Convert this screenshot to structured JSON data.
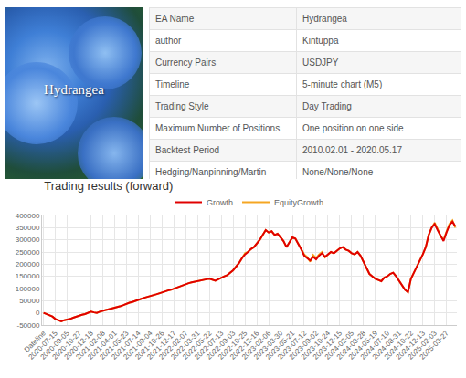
{
  "info": {
    "image_caption": "Hydrangea",
    "rows": [
      [
        "EA Name",
        "Hydrangea"
      ],
      [
        "author",
        "Kintuppa"
      ],
      [
        "Currency Pairs",
        "USDJPY"
      ],
      [
        "Timeline",
        "5-minute chart (M5)"
      ],
      [
        "Trading Style",
        "Day Trading"
      ],
      [
        "Maximum Number of Positions",
        "One position on one side"
      ],
      [
        "Backtest Period",
        "2010.02.01 - 2020.05.17"
      ],
      [
        "Hedging/Nanpinning/Martin",
        "None/None/None"
      ]
    ]
  },
  "chart_data": {
    "type": "line",
    "title": "Trading results (forward)",
    "categories": [
      "Dateline",
      null,
      null,
      null,
      "2020-07-15",
      null,
      null,
      null,
      "2020-09-05",
      null,
      null,
      null,
      "2020-10-27",
      null,
      null,
      null,
      "2020-12-18",
      null,
      null,
      null,
      "2021-02-08",
      null,
      null,
      null,
      "2021-04-01",
      null,
      null,
      null,
      "2021-05-23",
      null,
      null,
      null,
      "2021-07-14",
      null,
      null,
      null,
      "2021-09-04",
      null,
      null,
      null,
      "2021-10-26",
      null,
      null,
      null,
      "2021-12-17",
      null,
      null,
      null,
      "2022-02-07",
      null,
      null,
      null,
      "2022-03-31",
      null,
      null,
      null,
      "2022-05-22",
      null,
      null,
      null,
      "2022-07-13",
      null,
      null,
      null,
      "2022-09-03",
      null,
      null,
      null,
      "2022-10-25",
      null,
      null,
      null,
      "2022-12-16",
      null,
      null,
      null,
      "2023-02-06",
      null,
      null,
      null,
      "2023-03-30",
      null,
      null,
      null,
      "2023-05-21",
      null,
      null,
      null,
      "2023-07-12",
      null,
      null,
      null,
      "2023-09-02",
      null,
      null,
      null,
      "2023-10-24",
      null,
      null,
      null,
      "2023-12-15",
      null,
      null,
      null,
      "2024-02-05",
      null,
      null,
      null,
      "2024-03-28",
      null,
      null,
      null,
      "2024-05-19",
      null,
      null,
      null,
      "2024-07-10",
      null,
      null,
      null,
      "2024-08-31",
      null,
      null,
      null,
      "2024-10-22",
      null,
      null,
      null,
      "2024-12-13",
      null,
      null,
      null,
      "2025-02-03",
      null,
      null,
      null,
      "2025-03-27",
      null,
      null,
      null
    ],
    "series": [
      {
        "name": "Growth",
        "color": "#e00000",
        "values": [
          0,
          -5000,
          -10000,
          -15000,
          -25000,
          -30000,
          -35000,
          -30000,
          -28000,
          -25000,
          -20000,
          -15000,
          -12000,
          -8000,
          -5000,
          0,
          5000,
          2000,
          0,
          5000,
          10000,
          12000,
          15000,
          18000,
          20000,
          25000,
          28000,
          32000,
          38000,
          42000,
          45000,
          50000,
          55000,
          58000,
          62000,
          65000,
          70000,
          72000,
          76000,
          80000,
          85000,
          88000,
          92000,
          95000,
          100000,
          105000,
          110000,
          115000,
          120000,
          122000,
          125000,
          128000,
          130000,
          132000,
          135000,
          138000,
          140000,
          136000,
          132000,
          138000,
          145000,
          150000,
          155000,
          165000,
          175000,
          190000,
          205000,
          225000,
          240000,
          250000,
          262000,
          270000,
          285000,
          300000,
          320000,
          340000,
          330000,
          335000,
          320000,
          325000,
          310000,
          295000,
          270000,
          290000,
          310000,
          305000,
          285000,
          260000,
          235000,
          225000,
          215000,
          230000,
          220000,
          235000,
          245000,
          230000,
          240000,
          250000,
          245000,
          255000,
          265000,
          270000,
          260000,
          255000,
          245000,
          240000,
          250000,
          235000,
          210000,
          185000,
          160000,
          150000,
          140000,
          135000,
          130000,
          145000,
          150000,
          160000,
          165000,
          150000,
          130000,
          110000,
          95000,
          85000,
          140000,
          165000,
          190000,
          210000,
          240000,
          270000,
          320000,
          350000,
          365000,
          340000,
          320000,
          295000,
          330000,
          360000,
          375000,
          355000
        ]
      },
      {
        "name": "EquityGrowth",
        "color": "#f5a623",
        "values": [
          0,
          -5000,
          -10000,
          -15000,
          -25000,
          -30000,
          -35000,
          -30000,
          -28000,
          -25000,
          -20000,
          -15000,
          -12000,
          -8000,
          -5000,
          0,
          5000,
          2000,
          0,
          5000,
          10000,
          12000,
          15000,
          18000,
          20000,
          25000,
          28000,
          32000,
          38000,
          42000,
          45000,
          50000,
          55000,
          58000,
          62000,
          65000,
          70000,
          72000,
          76000,
          80000,
          85000,
          88000,
          92000,
          95000,
          100000,
          105000,
          110000,
          115000,
          120000,
          122000,
          125000,
          128000,
          130000,
          132000,
          135000,
          138000,
          140000,
          136000,
          132000,
          138000,
          145000,
          150000,
          155000,
          165000,
          175000,
          190000,
          205000,
          225000,
          245000,
          250000,
          262000,
          270000,
          285000,
          300000,
          320000,
          340000,
          330000,
          335000,
          320000,
          325000,
          310000,
          295000,
          270000,
          290000,
          310000,
          305000,
          285000,
          260000,
          240000,
          230000,
          210000,
          238000,
          225000,
          240000,
          250000,
          228000,
          240000,
          250000,
          245000,
          255000,
          265000,
          270000,
          260000,
          255000,
          245000,
          240000,
          250000,
          235000,
          210000,
          185000,
          160000,
          150000,
          140000,
          135000,
          130000,
          145000,
          150000,
          160000,
          165000,
          150000,
          130000,
          110000,
          95000,
          85000,
          140000,
          165000,
          190000,
          210000,
          240000,
          270000,
          320000,
          350000,
          370000,
          345000,
          315000,
          300000,
          335000,
          365000,
          380000,
          350000
        ]
      }
    ],
    "ylim": [
      -50000,
      400000
    ],
    "yticks": [
      -50000,
      0,
      50000,
      100000,
      150000,
      200000,
      250000,
      300000,
      350000,
      400000
    ],
    "grid": true,
    "legend": "top"
  }
}
